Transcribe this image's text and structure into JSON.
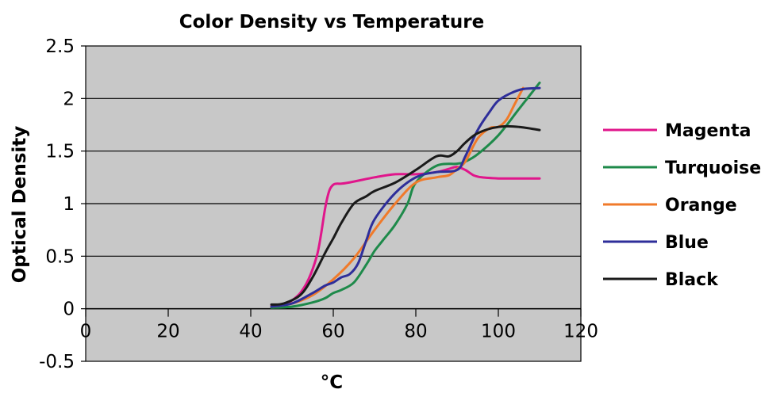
{
  "chart_data": {
    "type": "line",
    "title": "Color Density vs Temperature",
    "xlabel": "°C",
    "ylabel": "Optical Density",
    "xlim": [
      0,
      120
    ],
    "ylim": [
      -0.5,
      2.5
    ],
    "x_ticks": [
      "0",
      "20",
      "40",
      "60",
      "80",
      "100",
      "120"
    ],
    "y_ticks": [
      "2.5",
      "2",
      "1.5",
      "1",
      "0.5",
      "0",
      "-0.5"
    ],
    "grid": true,
    "legend_position": "right",
    "colors": {
      "plot_background": "#c8c8c8",
      "grid": "#000000",
      "Magenta": "#e0168b",
      "Turquoise": "#1e8a4a",
      "Orange": "#f07a2a",
      "Blue": "#2e2e9a",
      "Black": "#1a1a1a"
    },
    "series": [
      {
        "name": "Magenta",
        "x": [
          45,
          48,
          50,
          52,
          54,
          56,
          57,
          58,
          59,
          60,
          61,
          62,
          65,
          70,
          75,
          80,
          85,
          88,
          90,
          92,
          94,
          96,
          100,
          105,
          110
        ],
        "y": [
          0.03,
          0.04,
          0.08,
          0.15,
          0.28,
          0.5,
          0.7,
          0.95,
          1.12,
          1.18,
          1.19,
          1.19,
          1.21,
          1.25,
          1.28,
          1.28,
          1.3,
          1.33,
          1.35,
          1.32,
          1.27,
          1.25,
          1.24,
          1.24,
          1.24
        ]
      },
      {
        "name": "Turquoise",
        "x": [
          45,
          50,
          55,
          58,
          60,
          62,
          65,
          68,
          70,
          72,
          75,
          78,
          80,
          85,
          90,
          92,
          95,
          100,
          105,
          110
        ],
        "y": [
          0.01,
          0.02,
          0.06,
          0.1,
          0.15,
          0.18,
          0.25,
          0.42,
          0.55,
          0.65,
          0.8,
          1.0,
          1.2,
          1.36,
          1.38,
          1.4,
          1.47,
          1.65,
          1.9,
          2.15
        ]
      },
      {
        "name": "Orange",
        "x": [
          45,
          50,
          55,
          60,
          65,
          70,
          75,
          80,
          85,
          88,
          90,
          92,
          95,
          98,
          100,
          102,
          104,
          106
        ],
        "y": [
          0.02,
          0.05,
          0.13,
          0.28,
          0.48,
          0.75,
          1.0,
          1.2,
          1.25,
          1.27,
          1.33,
          1.4,
          1.62,
          1.72,
          1.73,
          1.8,
          1.95,
          2.1
        ]
      },
      {
        "name": "Blue",
        "x": [
          45,
          50,
          55,
          58,
          60,
          62,
          64,
          66,
          68,
          70,
          75,
          80,
          85,
          90,
          92,
          95,
          98,
          100,
          103,
          106,
          110
        ],
        "y": [
          0.02,
          0.05,
          0.15,
          0.22,
          0.25,
          0.3,
          0.33,
          0.43,
          0.65,
          0.85,
          1.1,
          1.25,
          1.3,
          1.32,
          1.45,
          1.7,
          1.88,
          1.98,
          2.05,
          2.09,
          2.1
        ]
      },
      {
        "name": "Black",
        "x": [
          45,
          48,
          52,
          55,
          58,
          60,
          62,
          65,
          68,
          70,
          75,
          80,
          85,
          88,
          90,
          92,
          95,
          100,
          105,
          110
        ],
        "y": [
          0.04,
          0.05,
          0.13,
          0.3,
          0.53,
          0.67,
          0.82,
          1.0,
          1.07,
          1.12,
          1.2,
          1.32,
          1.45,
          1.45,
          1.5,
          1.58,
          1.67,
          1.73,
          1.73,
          1.7
        ]
      }
    ]
  }
}
